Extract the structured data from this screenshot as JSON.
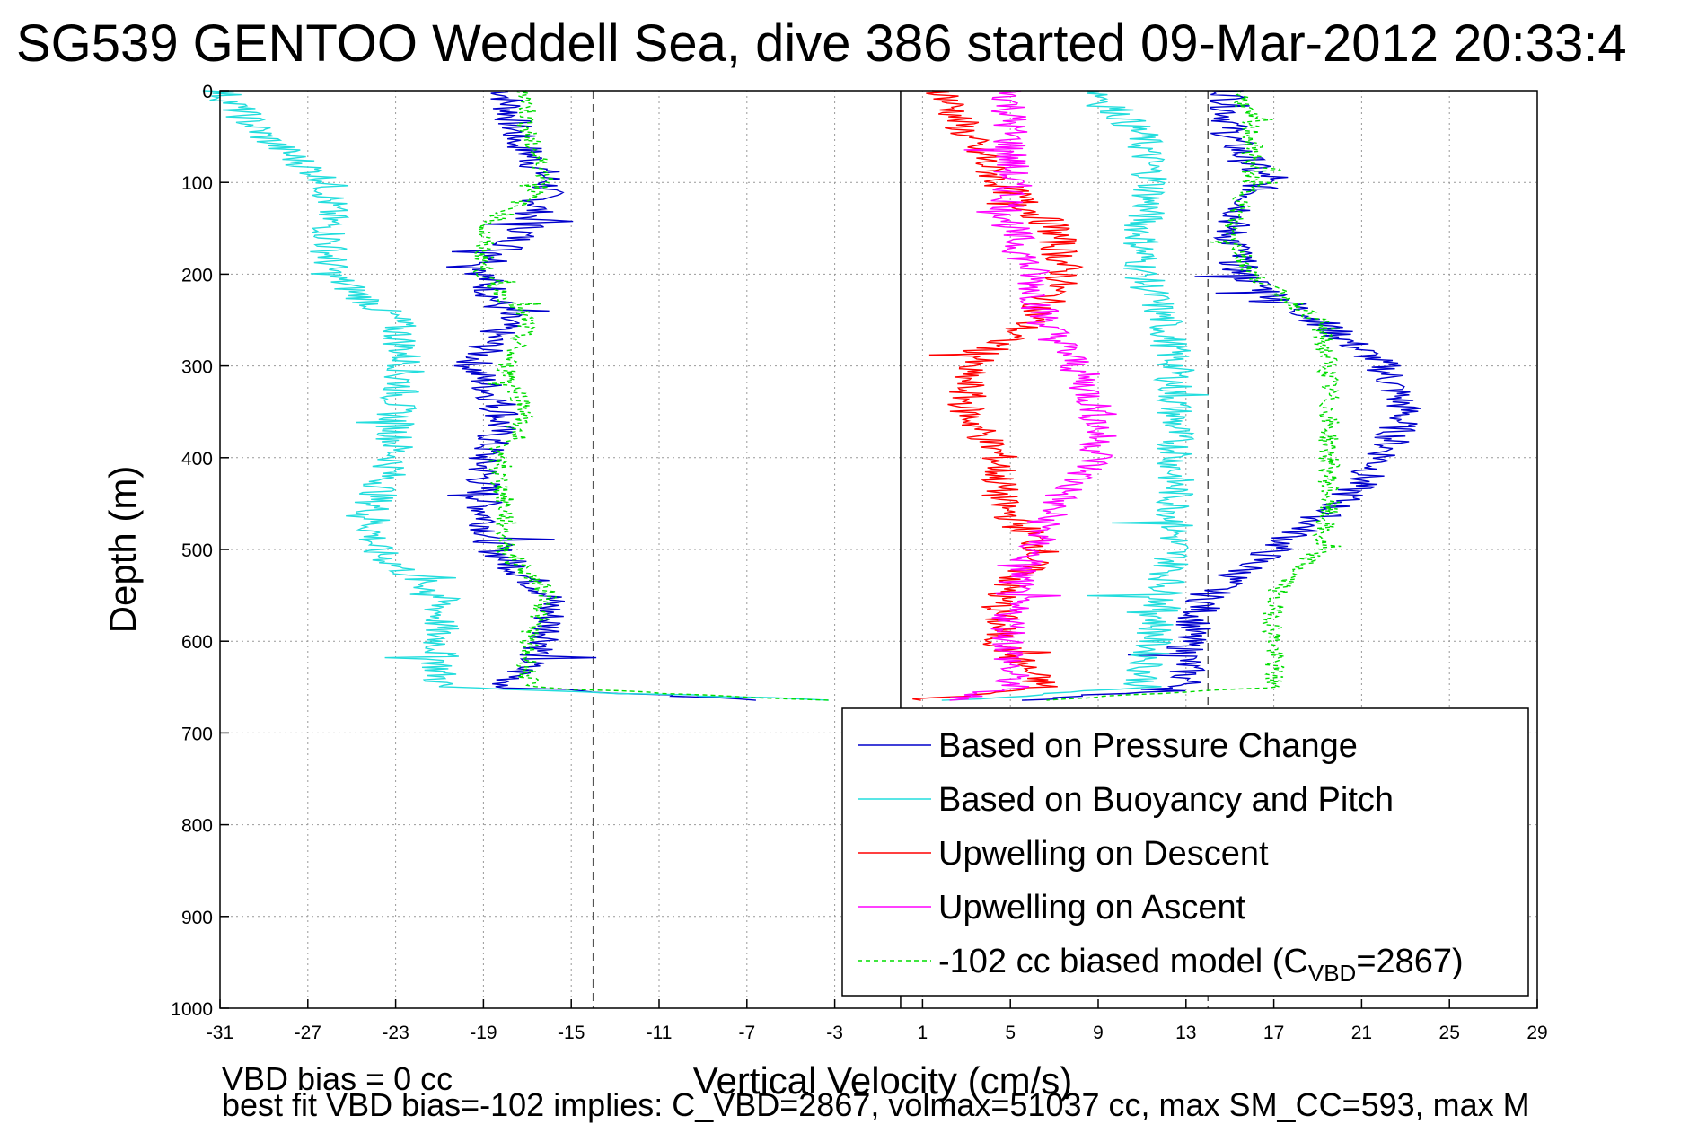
{
  "chart_data": {
    "type": "line",
    "title": "SG539 GENTOO Weddell Sea, dive 386 started 09-Mar-2012 20:33:4",
    "xlabel": "Vertical Velocity (cm/s)",
    "ylabel": "Depth (m)",
    "xlim": [
      -31,
      29
    ],
    "ylim": [
      0,
      1000
    ],
    "y_reversed": true,
    "grid": true,
    "xticks": [
      -31,
      -27,
      -23,
      -19,
      -15,
      -11,
      -7,
      -3,
      1,
      5,
      9,
      13,
      17,
      21,
      25,
      29
    ],
    "yticks": [
      0,
      100,
      200,
      300,
      400,
      500,
      600,
      700,
      800,
      900,
      1000
    ],
    "legend_position": "bottom-right",
    "legend": [
      {
        "label": "Based on Pressure Change",
        "color": "#0000cc",
        "style": "solid"
      },
      {
        "label": "Based on Buoyancy and Pitch",
        "color": "#22dddd",
        "style": "solid"
      },
      {
        "label": "Upwelling on Descent",
        "color": "#ff0000",
        "style": "solid"
      },
      {
        "label": "Upwelling on Ascent",
        "color": "#ff00ff",
        "style": "solid"
      },
      {
        "label": "-102 cc biased model (C",
        "sub": "VBD",
        "suffix": "=2867)",
        "color": "#00dd00",
        "style": "dashed"
      }
    ],
    "reference_lines": [
      {
        "x": 0,
        "style": "solid",
        "color": "#000000"
      },
      {
        "x": -14,
        "style": "dashed",
        "color": "#555555"
      },
      {
        "x": 14,
        "style": "dashed",
        "color": "#555555"
      }
    ],
    "depth": [
      0,
      50,
      100,
      150,
      200,
      250,
      300,
      350,
      400,
      450,
      500,
      550,
      600,
      650,
      665
    ],
    "series": [
      {
        "name": "Based on Pressure Change",
        "color": "#0000cc",
        "dash": false,
        "desc": [
          -18,
          -17.5,
          -16,
          -17,
          -19,
          -18,
          -19.5,
          -18,
          -19,
          -19,
          -18.5,
          -16,
          -16,
          -18,
          -6
        ],
        "asc": [
          15,
          15,
          16.5,
          15,
          15.5,
          19,
          22,
          23,
          22,
          20,
          17,
          14,
          13,
          13,
          6
        ]
      },
      {
        "name": "Based on Buoyancy and Pitch",
        "color": "#22dddd",
        "dash": false,
        "desc": [
          -31,
          -29,
          -26,
          -26,
          -26,
          -23,
          -22.5,
          -23,
          -23,
          -24,
          -24,
          -21,
          -21,
          -21,
          -2
        ],
        "asc": [
          9,
          11,
          11.5,
          11,
          11,
          12,
          12.5,
          12.5,
          12.5,
          12.5,
          12.5,
          12,
          11.5,
          11,
          2
        ]
      },
      {
        "name": "Upwelling on Descent",
        "color": "#ff0000",
        "dash": false,
        "desc": [
          2,
          3,
          4.5,
          7,
          7.5,
          6,
          3,
          3,
          4.5,
          4.5,
          6.5,
          4.5,
          4.5,
          6.5,
          0.5
        ]
      },
      {
        "name": "Upwelling on Ascent",
        "color": "#ff00ff",
        "dash": false,
        "desc": [
          5,
          5,
          5,
          5,
          6,
          6.5,
          8,
          9,
          9,
          7,
          6,
          5,
          5,
          5,
          2
        ]
      },
      {
        "name": "-102 cc biased model (CVBD=2867)",
        "color": "#00dd00",
        "dash": true,
        "desc": [
          -17,
          -17,
          -16,
          -19,
          -19,
          -17,
          -18,
          -17,
          -18.5,
          -18,
          -18,
          -16,
          -17,
          -17,
          -3
        ],
        "asc": [
          15.5,
          16,
          16,
          15,
          16,
          19,
          19.5,
          19.5,
          19.5,
          19.5,
          19,
          17,
          17,
          17,
          6
        ]
      }
    ],
    "footnote_1": "VBD bias = 0 cc",
    "footnote_2": "best fit VBD bias=-102 implies: C_VBD=2867, volmax=51037 cc, max SM_CC=593, max M"
  }
}
